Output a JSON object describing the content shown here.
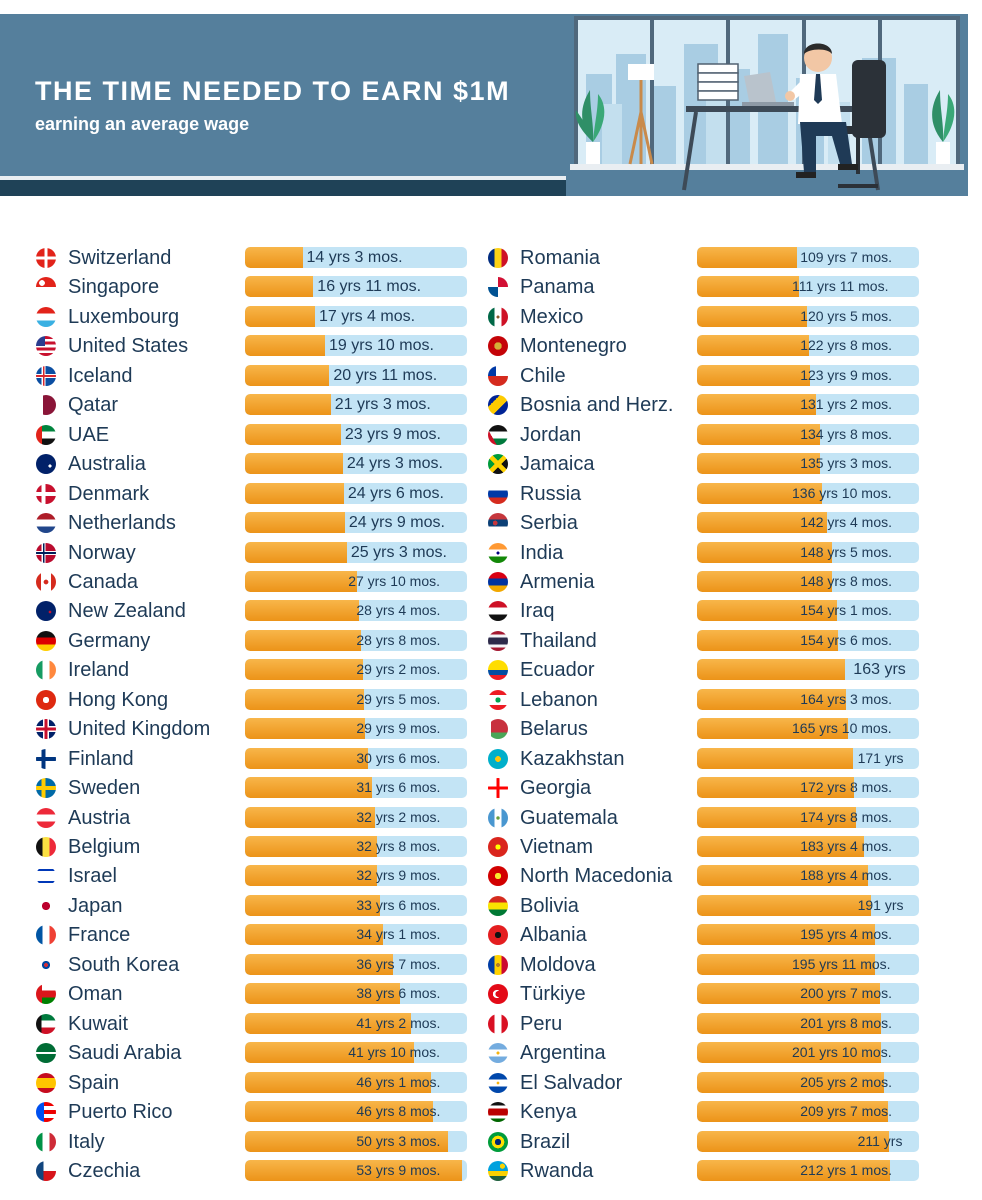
{
  "header": {
    "title": "THE TIME NEEDED TO EARN $1M",
    "subtitle": "earning an average wage"
  },
  "colors": {
    "header_bg": "#557f9c",
    "header_band": "#1f4257",
    "bar_fill": "#f29e27",
    "bar_track": "#c3e4f5",
    "text": "#1e3a56"
  },
  "chart_data": {
    "type": "bar",
    "title": "THE TIME NEEDED TO EARN $1M",
    "subtitle": "earning an average wage",
    "unit": "years",
    "columns": [
      {
        "range": [
          0,
          55
        ],
        "rows": [
          {
            "country": "Switzerland",
            "label": "14 yrs 3 mos.",
            "value": 14.25,
            "flag": "switzerland-flag-icon"
          },
          {
            "country": "Singapore",
            "label": "16 yrs 11 mos.",
            "value": 16.92,
            "flag": "singapore-flag-icon"
          },
          {
            "country": "Luxembourg",
            "label": "17 yrs 4 mos.",
            "value": 17.33,
            "flag": "luxembourg-flag-icon"
          },
          {
            "country": "United States",
            "label": "19 yrs 10 mos.",
            "value": 19.83,
            "flag": "united-states-flag-icon"
          },
          {
            "country": "Iceland",
            "label": "20 yrs 11 mos.",
            "value": 20.92,
            "flag": "iceland-flag-icon"
          },
          {
            "country": "Qatar",
            "label": "21 yrs 3 mos.",
            "value": 21.25,
            "flag": "qatar-flag-icon"
          },
          {
            "country": "UAE",
            "label": "23 yrs 9 mos.",
            "value": 23.75,
            "flag": "uae-flag-icon"
          },
          {
            "country": "Australia",
            "label": "24 yrs 3 mos.",
            "value": 24.25,
            "flag": "australia-flag-icon"
          },
          {
            "country": "Denmark",
            "label": "24 yrs 6 mos.",
            "value": 24.5,
            "flag": "denmark-flag-icon"
          },
          {
            "country": "Netherlands",
            "label": "24 yrs 9 mos.",
            "value": 24.75,
            "flag": "netherlands-flag-icon"
          },
          {
            "country": "Norway",
            "label": "25 yrs 3 mos.",
            "value": 25.25,
            "flag": "norway-flag-icon"
          },
          {
            "country": "Canada",
            "label": "27 yrs 10 mos.",
            "value": 27.83,
            "flag": "canada-flag-icon"
          },
          {
            "country": "New Zealand",
            "label": "28 yrs 4 mos.",
            "value": 28.33,
            "flag": "new-zealand-flag-icon"
          },
          {
            "country": "Germany",
            "label": "28 yrs 8 mos.",
            "value": 28.67,
            "flag": "germany-flag-icon"
          },
          {
            "country": "Ireland",
            "label": "29 yrs 2 mos.",
            "value": 29.17,
            "flag": "ireland-flag-icon"
          },
          {
            "country": "Hong Kong",
            "label": "29 yrs 5 mos.",
            "value": 29.42,
            "flag": "hong-kong-flag-icon"
          },
          {
            "country": "United Kingdom",
            "label": "29 yrs 9 mos.",
            "value": 29.75,
            "flag": "united-kingdom-flag-icon"
          },
          {
            "country": "Finland",
            "label": "30 yrs 6 mos.",
            "value": 30.5,
            "flag": "finland-flag-icon"
          },
          {
            "country": "Sweden",
            "label": "31 yrs 6 mos.",
            "value": 31.5,
            "flag": "sweden-flag-icon"
          },
          {
            "country": "Austria",
            "label": "32 yrs 2 mos.",
            "value": 32.17,
            "flag": "austria-flag-icon"
          },
          {
            "country": "Belgium",
            "label": "32 yrs 8 mos.",
            "value": 32.67,
            "flag": "belgium-flag-icon"
          },
          {
            "country": "Israel",
            "label": "32 yrs 9 mos.",
            "value": 32.75,
            "flag": "israel-flag-icon"
          },
          {
            "country": "Japan",
            "label": "33 yrs 6 mos.",
            "value": 33.5,
            "flag": "japan-flag-icon"
          },
          {
            "country": "France",
            "label": "34 yrs 1 mos.",
            "value": 34.08,
            "flag": "france-flag-icon"
          },
          {
            "country": "South Korea",
            "label": "36 yrs 7 mos.",
            "value": 36.58,
            "flag": "south-korea-flag-icon"
          },
          {
            "country": "Oman",
            "label": "38 yrs 6 mos.",
            "value": 38.5,
            "flag": "oman-flag-icon"
          },
          {
            "country": "Kuwait",
            "label": "41 yrs 2 mos.",
            "value": 41.17,
            "flag": "kuwait-flag-icon"
          },
          {
            "country": "Saudi Arabia",
            "label": "41 yrs 10 mos.",
            "value": 41.83,
            "flag": "saudi-arabia-flag-icon"
          },
          {
            "country": "Spain",
            "label": "46 yrs 1 mos.",
            "value": 46.08,
            "flag": "spain-flag-icon"
          },
          {
            "country": "Puerto Rico",
            "label": "46 yrs 8 mos.",
            "value": 46.67,
            "flag": "puerto-rico-flag-icon"
          },
          {
            "country": "Italy",
            "label": "50 yrs 3 mos.",
            "value": 50.25,
            "flag": "italy-flag-icon"
          },
          {
            "country": "Czechia",
            "label": "53 yrs 9 mos.",
            "value": 53.75,
            "flag": "czechia-flag-icon"
          }
        ]
      },
      {
        "range": [
          0,
          244
        ],
        "rows": [
          {
            "country": "Romania",
            "label": "109 yrs 7 mos.",
            "value": 109.58,
            "flag": "romania-flag-icon"
          },
          {
            "country": "Panama",
            "label": "111 yrs 11 mos.",
            "value": 111.92,
            "flag": "panama-flag-icon"
          },
          {
            "country": "Mexico",
            "label": "120 yrs 5 mos.",
            "value": 120.42,
            "flag": "mexico-flag-icon"
          },
          {
            "country": "Montenegro",
            "label": "122 yrs 8 mos.",
            "value": 122.67,
            "flag": "montenegro-flag-icon"
          },
          {
            "country": "Chile",
            "label": "123 yrs 9 mos.",
            "value": 123.75,
            "flag": "chile-flag-icon"
          },
          {
            "country": "Bosnia and Herz.",
            "label": "131 yrs 2 mos.",
            "value": 131.17,
            "flag": "bosnia-flag-icon"
          },
          {
            "country": "Jordan",
            "label": "134 yrs 8 mos.",
            "value": 134.67,
            "flag": "jordan-flag-icon"
          },
          {
            "country": "Jamaica",
            "label": "135 yrs 3 mos.",
            "value": 135.25,
            "flag": "jamaica-flag-icon"
          },
          {
            "country": "Russia",
            "label": "136 yrs 10 mos.",
            "value": 136.83,
            "flag": "russia-flag-icon"
          },
          {
            "country": "Serbia",
            "label": "142 yrs 4 mos.",
            "value": 142.33,
            "flag": "serbia-flag-icon"
          },
          {
            "country": "India",
            "label": "148 yrs 5 mos.",
            "value": 148.42,
            "flag": "india-flag-icon"
          },
          {
            "country": "Armenia",
            "label": "148 yrs 8 mos.",
            "value": 148.67,
            "flag": "armenia-flag-icon"
          },
          {
            "country": "Iraq",
            "label": "154 yrs 1 mos.",
            "value": 154.08,
            "flag": "iraq-flag-icon"
          },
          {
            "country": "Thailand",
            "label": "154 yrs 6 mos.",
            "value": 154.5,
            "flag": "thailand-flag-icon"
          },
          {
            "country": "Ecuador",
            "label": "163 yrs",
            "value": 163,
            "flag": "ecuador-flag-icon"
          },
          {
            "country": "Lebanon",
            "label": "164 yrs 3 mos.",
            "value": 164.25,
            "flag": "lebanon-flag-icon"
          },
          {
            "country": "Belarus",
            "label": "165 yrs 10 mos.",
            "value": 165.83,
            "flag": "belarus-flag-icon"
          },
          {
            "country": "Kazakhstan",
            "label": "171 yrs",
            "value": 171,
            "flag": "kazakhstan-flag-icon"
          },
          {
            "country": "Georgia",
            "label": "172 yrs 8 mos.",
            "value": 172.67,
            "flag": "georgia-flag-icon"
          },
          {
            "country": "Guatemala",
            "label": "174 yrs 8 mos.",
            "value": 174.67,
            "flag": "guatemala-flag-icon"
          },
          {
            "country": "Vietnam",
            "label": "183 yrs 4 mos.",
            "value": 183.33,
            "flag": "vietnam-flag-icon"
          },
          {
            "country": "North Macedonia",
            "label": "188 yrs 4 mos.",
            "value": 188.33,
            "flag": "north-macedonia-flag-icon"
          },
          {
            "country": "Bolivia",
            "label": "191 yrs",
            "value": 191,
            "flag": "bolivia-flag-icon"
          },
          {
            "country": "Albania",
            "label": "195 yrs 4 mos.",
            "value": 195.33,
            "flag": "albania-flag-icon"
          },
          {
            "country": "Moldova",
            "label": "195 yrs 11 mos.",
            "value": 195.92,
            "flag": "moldova-flag-icon"
          },
          {
            "country": "Türkiye",
            "label": "200 yrs 7 mos.",
            "value": 200.58,
            "flag": "turkiye-flag-icon"
          },
          {
            "country": "Peru",
            "label": "201 yrs 8 mos.",
            "value": 201.67,
            "flag": "peru-flag-icon"
          },
          {
            "country": "Argentina",
            "label": "201 yrs 10 mos.",
            "value": 201.83,
            "flag": "argentina-flag-icon"
          },
          {
            "country": "El Salvador",
            "label": "205 yrs 2 mos.",
            "value": 205.17,
            "flag": "el-salvador-flag-icon"
          },
          {
            "country": "Kenya",
            "label": "209 yrs 7 mos.",
            "value": 209.58,
            "flag": "kenya-flag-icon"
          },
          {
            "country": "Brazil",
            "label": "211 yrs",
            "value": 211,
            "flag": "brazil-flag-icon"
          },
          {
            "country": "Rwanda",
            "label": "212 yrs 1 mos.",
            "value": 212.08,
            "flag": "rwanda-flag-icon"
          }
        ]
      }
    ]
  }
}
